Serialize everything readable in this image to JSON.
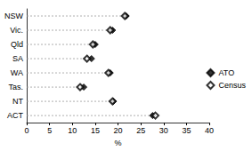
{
  "chart_data": {
    "type": "scatter",
    "orientation": "horizontal",
    "categories": [
      "NSW",
      "Vic.",
      "Qld",
      "SA",
      "WA",
      "Tas.",
      "NT",
      "ACT"
    ],
    "series": [
      {
        "name": "ATO",
        "color": "#000000",
        "marker": "diamond",
        "values": [
          21.8,
          18.8,
          15.0,
          14.2,
          18.3,
          12.5,
          19.0,
          27.6
        ]
      },
      {
        "name": "Census",
        "color": "#000000",
        "marker": "open_diamond",
        "values": [
          21.5,
          18.3,
          14.5,
          13.2,
          17.9,
          11.7,
          18.8,
          28.2
        ]
      }
    ],
    "x_label": "%",
    "xlim": [
      0,
      40
    ],
    "xticks": [
      0,
      5,
      10,
      15,
      20,
      25,
      30,
      35,
      40
    ],
    "grid": false,
    "legend": "right"
  }
}
